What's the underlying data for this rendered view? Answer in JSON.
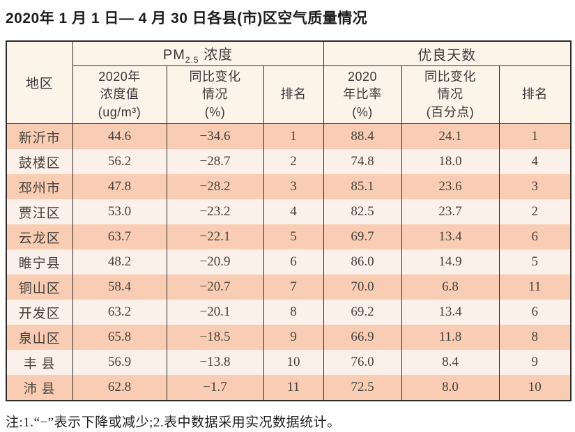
{
  "page": {
    "title": "2020年 1 月 1 日— 4 月 30 日各县(市)区空气质量情况",
    "note": "注:1.“−”表示下降或减少;2.表中数据采用实况数据统计。"
  },
  "colors": {
    "row_odd": "#f8cdb4",
    "row_even": "#fbf1ea",
    "header_bg": "#fcf3e9",
    "border": "#2e2a27",
    "text": "#47413c"
  },
  "table": {
    "region_header": "地区",
    "pm_group": {
      "prefix": "PM",
      "sub": "2.5",
      "suffix": " 浓度"
    },
    "days_group": "优良天数",
    "sub_headers": {
      "pm_value": [
        "2020年",
        "浓度值",
        "(ug/m³)"
      ],
      "pm_change": [
        "同比变化",
        "情况",
        "(%)"
      ],
      "pm_rank": [
        "排名"
      ],
      "rate_value": [
        "2020",
        "年比率",
        "(%)"
      ],
      "rate_change": [
        "同比变化",
        "情况",
        "(百分点)"
      ],
      "rate_rank": [
        "排名"
      ]
    },
    "rows": [
      {
        "region": "新沂市",
        "pm_value": "44.6",
        "pm_change": "−34.6",
        "pm_rank": "1",
        "rate_value": "88.4",
        "rate_change": "24.1",
        "rate_rank": "1"
      },
      {
        "region": "鼓楼区",
        "pm_value": "56.2",
        "pm_change": "−28.7",
        "pm_rank": "2",
        "rate_value": "74.8",
        "rate_change": "18.0",
        "rate_rank": "4"
      },
      {
        "region": "邳州市",
        "pm_value": "47.8",
        "pm_change": "−28.2",
        "pm_rank": "3",
        "rate_value": "85.1",
        "rate_change": "23.6",
        "rate_rank": "3"
      },
      {
        "region": "贾汪区",
        "pm_value": "53.0",
        "pm_change": "−23.2",
        "pm_rank": "4",
        "rate_value": "82.5",
        "rate_change": "23.7",
        "rate_rank": "2"
      },
      {
        "region": "云龙区",
        "pm_value": "63.7",
        "pm_change": "−22.1",
        "pm_rank": "5",
        "rate_value": "69.7",
        "rate_change": "13.4",
        "rate_rank": "6"
      },
      {
        "region": "睢宁县",
        "pm_value": "48.2",
        "pm_change": "−20.9",
        "pm_rank": "6",
        "rate_value": "86.0",
        "rate_change": "14.9",
        "rate_rank": "5"
      },
      {
        "region": "铜山区",
        "pm_value": "58.4",
        "pm_change": "−20.7",
        "pm_rank": "7",
        "rate_value": "70.0",
        "rate_change": "6.8",
        "rate_rank": "11"
      },
      {
        "region": "开发区",
        "pm_value": "63.2",
        "pm_change": "−20.1",
        "pm_rank": "8",
        "rate_value": "69.2",
        "rate_change": "13.4",
        "rate_rank": "6"
      },
      {
        "region": "泉山区",
        "pm_value": "65.8",
        "pm_change": "−18.5",
        "pm_rank": "9",
        "rate_value": "66.9",
        "rate_change": "11.8",
        "rate_rank": "8"
      },
      {
        "region": "丰 县",
        "pm_value": "56.9",
        "pm_change": "−13.8",
        "pm_rank": "10",
        "rate_value": "76.0",
        "rate_change": "8.4",
        "rate_rank": "9"
      },
      {
        "region": "沛 县",
        "pm_value": "62.8",
        "pm_change": "−1.7",
        "pm_rank": "11",
        "rate_value": "72.5",
        "rate_change": "8.0",
        "rate_rank": "10"
      }
    ]
  }
}
